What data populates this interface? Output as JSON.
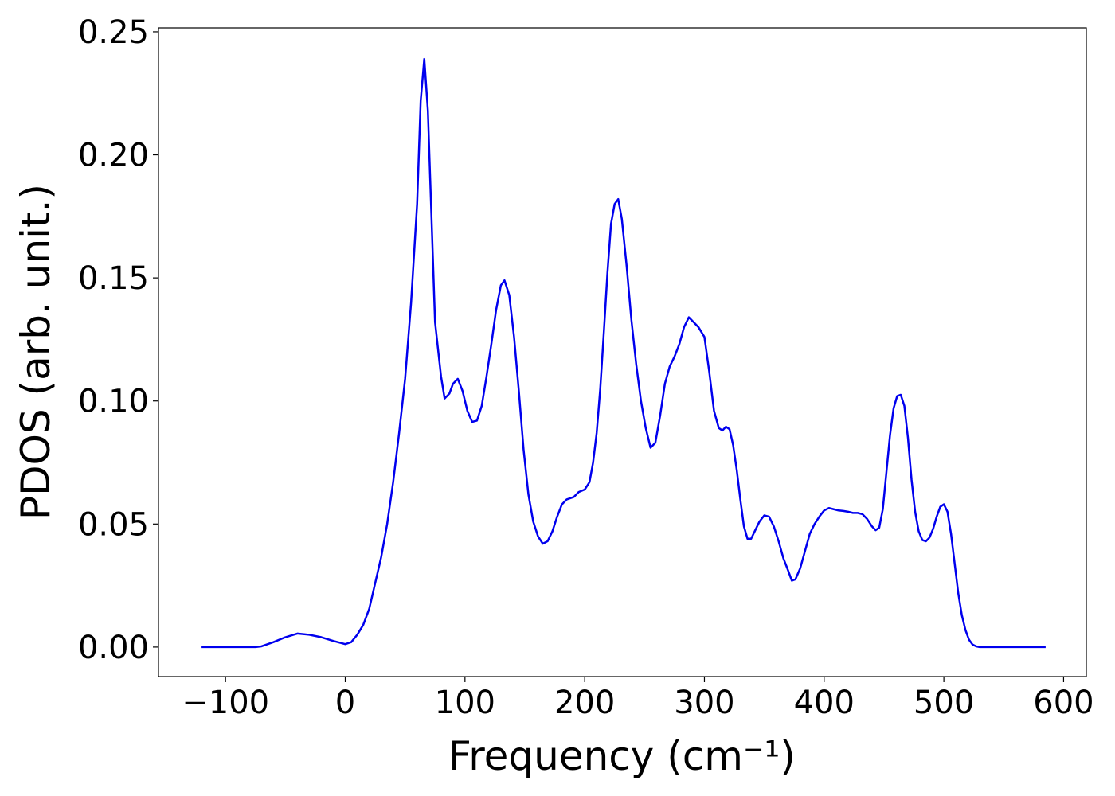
{
  "chart_data": {
    "type": "line",
    "xlabel": "Frequency (cm⁻¹)",
    "ylabel": "PDOS (arb. unit.)",
    "x": [
      -120,
      -75,
      -70,
      -60,
      -50,
      -40,
      -30,
      -20,
      -10,
      0,
      5,
      10,
      15,
      20,
      25,
      30,
      35,
      40,
      45,
      50,
      55,
      60,
      63,
      66,
      69,
      75,
      80,
      83,
      87,
      90,
      94,
      98,
      102,
      106,
      110,
      114,
      118,
      122,
      126,
      130,
      133,
      137,
      141,
      145,
      149,
      153,
      157,
      161,
      165,
      169,
      173,
      177,
      181,
      185,
      191,
      195,
      200,
      204,
      207,
      210,
      213,
      216,
      219,
      222,
      225,
      228,
      231,
      235,
      239,
      243,
      247,
      251,
      255,
      259,
      263,
      267,
      271,
      275,
      279,
      283,
      287,
      291,
      295,
      300,
      304,
      308,
      312,
      315,
      318,
      321,
      324,
      327,
      330,
      333,
      336,
      339,
      342,
      346,
      350,
      354,
      358,
      362,
      366,
      370,
      373,
      376,
      380,
      384,
      388,
      392,
      396,
      400,
      404,
      408,
      412,
      416,
      420,
      424,
      428,
      432,
      436,
      440,
      443,
      446,
      449,
      452,
      455,
      458,
      461,
      464,
      467,
      470,
      473,
      476,
      479,
      482,
      485,
      488,
      491,
      494,
      497,
      500,
      503,
      506,
      509,
      512,
      515,
      518,
      521,
      524,
      527,
      530,
      585
    ],
    "series": [
      {
        "name": "PDOS",
        "color": "#0000ee",
        "values": [
          0,
          0,
          0.0003,
          0.002,
          0.004,
          0.0055,
          0.005,
          0.004,
          0.0025,
          0.0012,
          0.002,
          0.005,
          0.009,
          0.0155,
          0.026,
          0.0365,
          0.05,
          0.067,
          0.087,
          0.109,
          0.14,
          0.18,
          0.222,
          0.239,
          0.218,
          0.132,
          0.11,
          0.101,
          0.103,
          0.107,
          0.109,
          0.104,
          0.096,
          0.0915,
          0.092,
          0.098,
          0.11,
          0.123,
          0.137,
          0.147,
          0.149,
          0.143,
          0.126,
          0.104,
          0.08,
          0.062,
          0.051,
          0.045,
          0.042,
          0.043,
          0.047,
          0.053,
          0.058,
          0.06,
          0.061,
          0.063,
          0.064,
          0.067,
          0.075,
          0.087,
          0.105,
          0.128,
          0.152,
          0.172,
          0.18,
          0.182,
          0.174,
          0.155,
          0.133,
          0.115,
          0.1,
          0.089,
          0.081,
          0.083,
          0.094,
          0.107,
          0.114,
          0.118,
          0.123,
          0.13,
          0.134,
          0.132,
          0.13,
          0.126,
          0.112,
          0.096,
          0.089,
          0.088,
          0.0895,
          0.0885,
          0.082,
          0.072,
          0.06,
          0.049,
          0.044,
          0.044,
          0.047,
          0.051,
          0.0535,
          0.053,
          0.049,
          0.043,
          0.036,
          0.031,
          0.027,
          0.0275,
          0.032,
          0.039,
          0.046,
          0.05,
          0.053,
          0.0555,
          0.0565,
          0.056,
          0.0555,
          0.0553,
          0.055,
          0.0545,
          0.0545,
          0.054,
          0.052,
          0.049,
          0.0475,
          0.0485,
          0.056,
          0.071,
          0.086,
          0.097,
          0.102,
          0.1025,
          0.098,
          0.085,
          0.068,
          0.055,
          0.047,
          0.0435,
          0.043,
          0.0445,
          0.048,
          0.053,
          0.057,
          0.058,
          0.055,
          0.046,
          0.034,
          0.022,
          0.013,
          0.007,
          0.003,
          0.001,
          0.0003,
          0,
          0
        ]
      }
    ],
    "xlim": [
      -156,
      619
    ],
    "ylim": [
      -0.012,
      0.2516
    ],
    "xticks": [
      {
        "value": -100,
        "label": "−100"
      },
      0,
      100,
      200,
      300,
      400,
      500,
      600
    ],
    "yticks": [
      {
        "value": 0,
        "label": "0.00"
      },
      {
        "value": 0.05,
        "label": "0.05"
      },
      {
        "value": 0.1,
        "label": "0.10"
      },
      {
        "value": 0.15,
        "label": "0.15"
      },
      {
        "value": 0.2,
        "label": "0.20"
      },
      {
        "value": 0.25,
        "label": "0.25"
      }
    ],
    "grid": false
  }
}
